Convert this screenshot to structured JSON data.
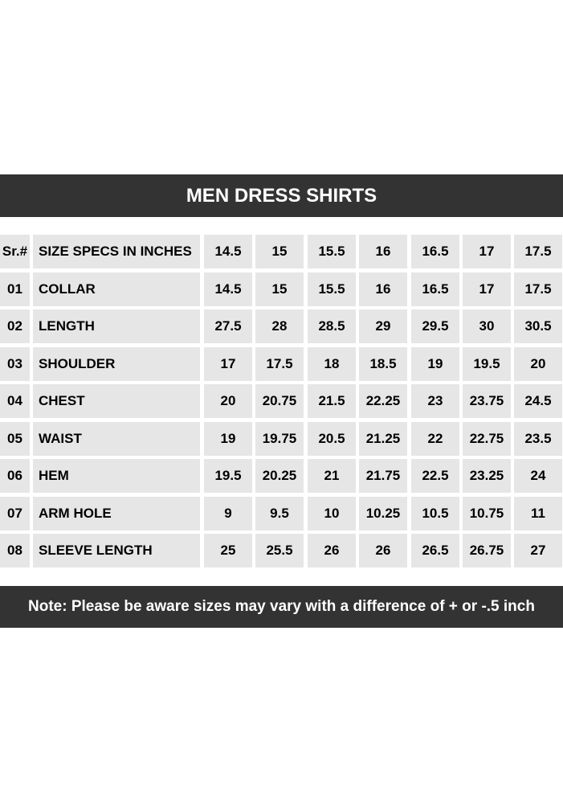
{
  "title": "MEN DRESS SHIRTS",
  "header": {
    "sr": "Sr.#",
    "spec": "SIZE SPECS IN INCHES",
    "sizes": [
      "14.5",
      "15",
      "15.5",
      "16",
      "16.5",
      "17",
      "17.5"
    ]
  },
  "rows": [
    {
      "sr": "01",
      "spec": "COLLAR",
      "values": [
        "14.5",
        "15",
        "15.5",
        "16",
        "16.5",
        "17",
        "17.5"
      ]
    },
    {
      "sr": "02",
      "spec": "LENGTH",
      "values": [
        "27.5",
        "28",
        "28.5",
        "29",
        "29.5",
        "30",
        "30.5"
      ]
    },
    {
      "sr": "03",
      "spec": "SHOULDER",
      "values": [
        "17",
        "17.5",
        "18",
        "18.5",
        "19",
        "19.5",
        "20"
      ]
    },
    {
      "sr": "04",
      "spec": "CHEST",
      "values": [
        "20",
        "20.75",
        "21.5",
        "22.25",
        "23",
        "23.75",
        "24.5"
      ]
    },
    {
      "sr": "05",
      "spec": "WAIST",
      "values": [
        "19",
        "19.75",
        "20.5",
        "21.25",
        "22",
        "22.75",
        "23.5"
      ]
    },
    {
      "sr": "06",
      "spec": "HEM",
      "values": [
        "19.5",
        "20.25",
        "21",
        "21.75",
        "22.5",
        "23.25",
        "24"
      ]
    },
    {
      "sr": "07",
      "spec": "ARM HOLE",
      "values": [
        "9",
        "9.5",
        "10",
        "10.25",
        "10.5",
        "10.75",
        "11"
      ]
    },
    {
      "sr": "08",
      "spec": "SLEEVE LENGTH",
      "values": [
        "25",
        "25.5",
        "26",
        "26",
        "26.5",
        "26.75",
        "27"
      ]
    }
  ],
  "note": "Note: Please be aware sizes may vary with a difference of + or -.5 inch",
  "colors": {
    "bar": "#333333",
    "cell": "#e6e6e6"
  }
}
